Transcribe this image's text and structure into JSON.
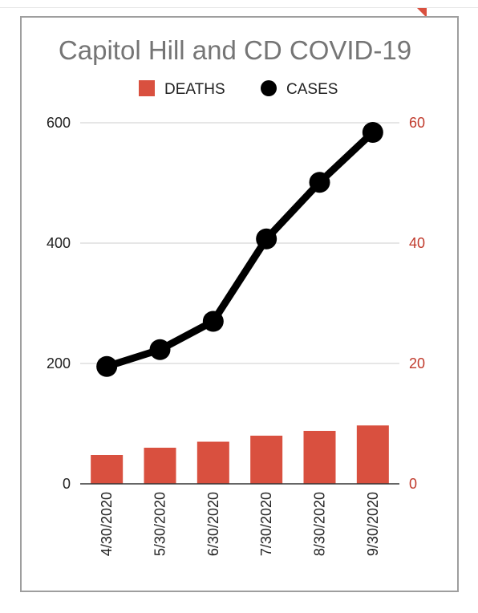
{
  "chart_data": {
    "type": "bar+line",
    "title": "Capitol Hill and CD COVID-19",
    "categories": [
      "4/30/2020",
      "5/30/2020",
      "6/30/2020",
      "7/30/2020",
      "8/30/2020",
      "9/30/2020"
    ],
    "series": [
      {
        "name": "DEATHS",
        "type": "bar",
        "axis": "right",
        "color": "#d9503f",
        "values": [
          4.8,
          6.0,
          7.0,
          8.0,
          8.8,
          9.7
        ]
      },
      {
        "name": "CASES",
        "type": "line",
        "axis": "left",
        "color": "#000000",
        "values": [
          195,
          223,
          270,
          407,
          501,
          584
        ]
      }
    ],
    "y_left": {
      "ticks": [
        "0",
        "200",
        "400",
        "600"
      ],
      "range": [
        0,
        600
      ]
    },
    "y_right": {
      "ticks": [
        "0",
        "20",
        "40",
        "60"
      ],
      "range": [
        0,
        60
      ],
      "color": "#c0392b"
    },
    "grid": true,
    "legend": "top-center"
  }
}
